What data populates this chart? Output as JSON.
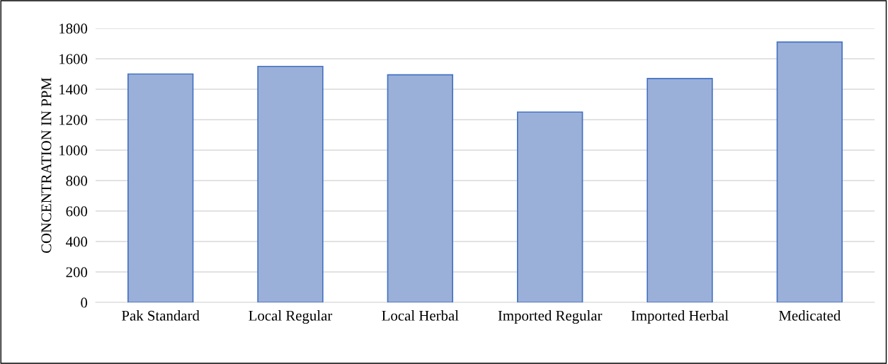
{
  "chart_data": {
    "type": "bar",
    "ylabel": "CONCENTRATION IN PPM",
    "categories": [
      "Pak Standard",
      "Local Regular",
      "Local Herbal",
      "Imported Regular",
      "Imported Herbal",
      "Medicated"
    ],
    "values": [
      1500,
      1550,
      1495,
      1250,
      1470,
      1710
    ],
    "color": "#9bb0d8",
    "ylim": [
      0,
      1800
    ],
    "yticks": [
      0,
      200,
      400,
      600,
      800,
      1000,
      1200,
      1400,
      1600,
      1800
    ],
    "grid": "y"
  }
}
